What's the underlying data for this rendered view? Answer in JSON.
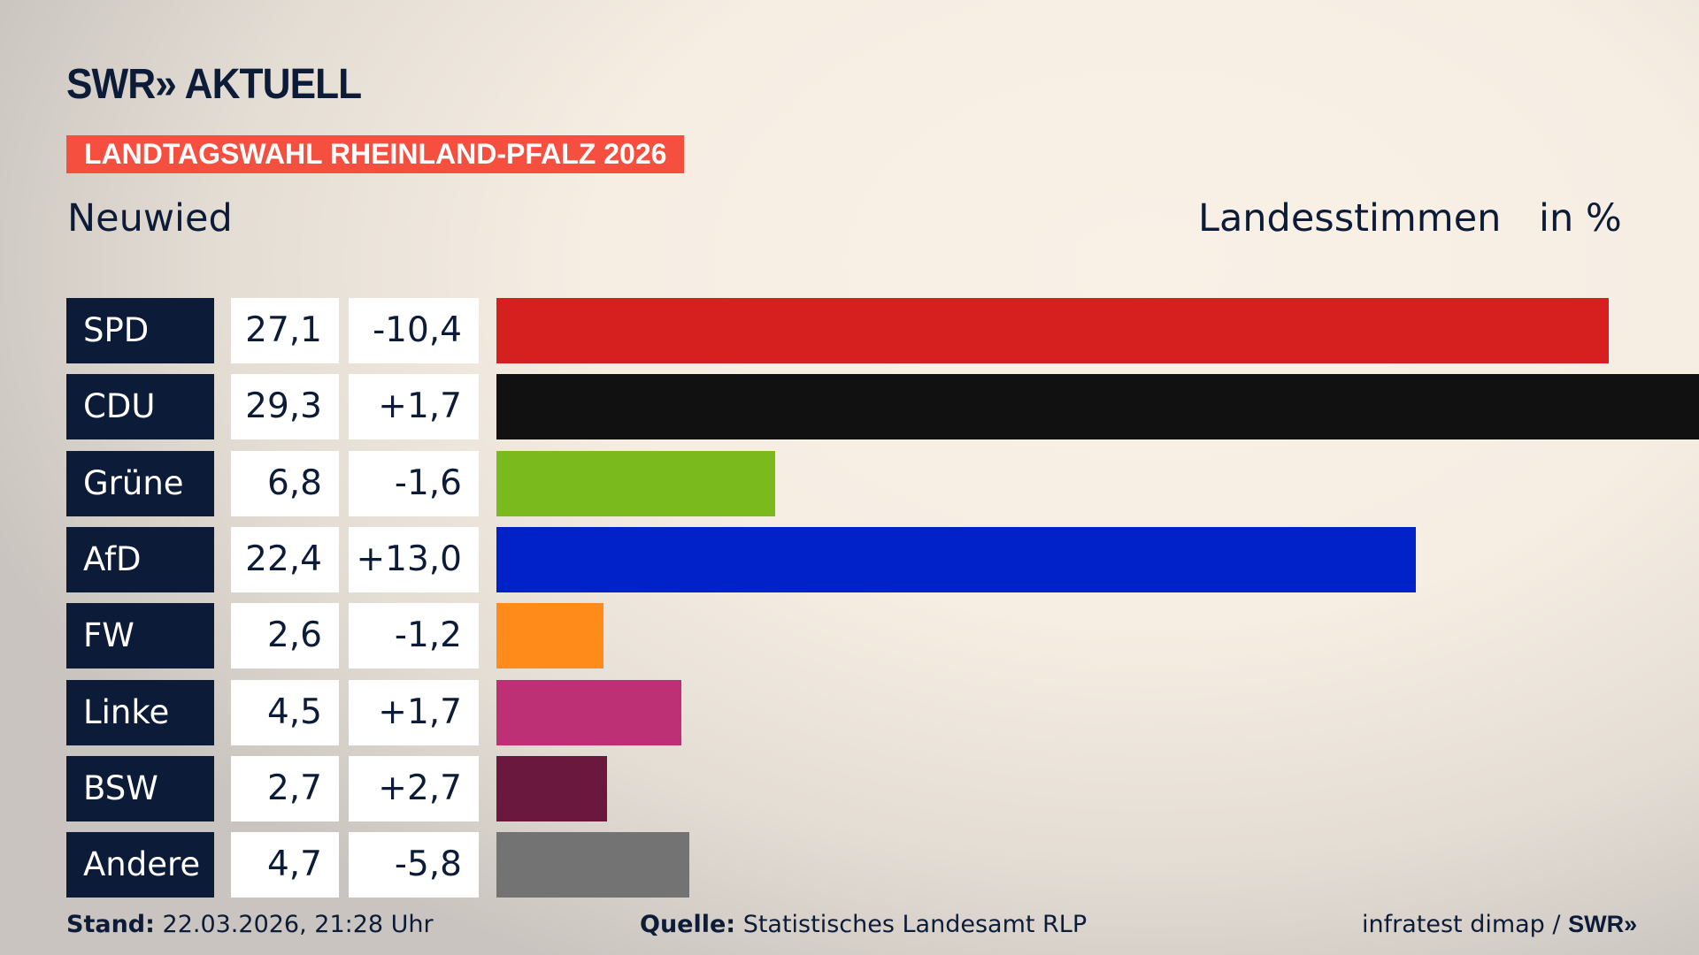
{
  "header": {
    "logo": "SWR» AKTUELL",
    "banner": "LANDTAGSWAHL RHEINLAND-PFALZ 2026",
    "region": "Neuwied",
    "measure": "Landesstimmen",
    "unit": "in %"
  },
  "chart_data": {
    "type": "bar",
    "orientation": "horizontal",
    "xlim": [
      0,
      29.3
    ],
    "categories": [
      "SPD",
      "CDU",
      "Grüne",
      "AfD",
      "FW",
      "Linke",
      "BSW",
      "Andere"
    ],
    "values": [
      27.1,
      29.3,
      6.8,
      22.4,
      2.6,
      4.5,
      2.7,
      4.7
    ],
    "value_labels": [
      "27,1",
      "29,3",
      "6,8",
      "22,4",
      "2,6",
      "4,5",
      "2,7",
      "4,7"
    ],
    "diff_labels": [
      "-10,4",
      "+1,7",
      "-1,6",
      "+13,0",
      "-1,2",
      "+1,7",
      "+2,7",
      "-5,8"
    ],
    "colors": [
      "#d62020",
      "#111111",
      "#7aba1c",
      "#0022c8",
      "#ff8c1a",
      "#bd3075",
      "#6a183e",
      "#737373"
    ]
  },
  "footer": {
    "stand_label": "Stand:",
    "stand_value": "22.03.2026, 21:28 Uhr",
    "source_label": "Quelle:",
    "source_value": "Statistisches Landesamt RLP",
    "credit": "infratest dimap / ",
    "credit_logo": "SWR»"
  }
}
